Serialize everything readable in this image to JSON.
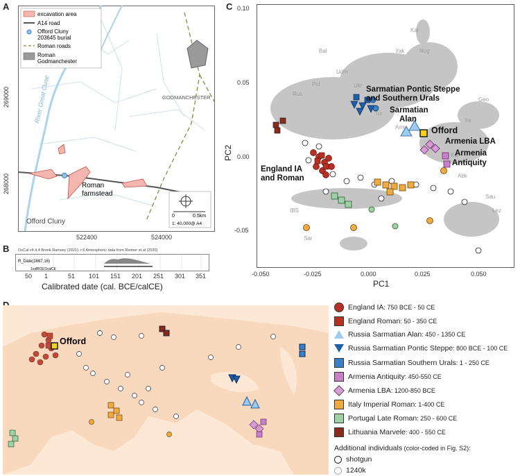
{
  "panel_a": {
    "label": "A",
    "legend": {
      "excavation": "excavation area",
      "road": "A14 road",
      "burial_line1": "Offord Cluny",
      "burial_line2": "203645 burial",
      "roman_roads": "Roman roads",
      "godman_line1": "Roman",
      "godman_line2": "Godmanchester"
    },
    "river": "River Great Ouse",
    "town": "GODMANCHESTER",
    "farmstead_line1": "Roman",
    "farmstead_line2": "farmstead",
    "village": "Offord Cluny",
    "y_ticks": [
      "269000",
      "268000"
    ],
    "x_ticks": [
      "522400",
      "524000"
    ],
    "scale_zero": "0",
    "scale_end": "0.5km",
    "scale_note": "1: 40,000@ A4",
    "colors": {
      "excavation": "#f4b6ae",
      "burial": "#8fc4e8",
      "roman_road": "#8a8a3a",
      "godmanchester": "#9a9a9a"
    }
  },
  "panel_b": {
    "label": "B",
    "header": "OxCal v4.4.4 Bronk Ramsey (2021); r:5 Atmospheric data from Reimer et al (2020)",
    "row_label": "R_Date(1667,16)",
    "unit_note": "1calBCE/1calCE",
    "ticks": [
      "50",
      "1",
      "51",
      "101",
      "151",
      "201",
      "251",
      "301",
      "351"
    ],
    "xlabel": "Calibrated date (cal. BCE/calCE)"
  },
  "panel_c": {
    "label": "C",
    "xlabel": "PC1",
    "ylabel": "PC2",
    "x_ticks": [
      "-0.050",
      "-0.025",
      "0.000",
      "0.025",
      "0.050"
    ],
    "y_ticks": [
      "0.10",
      "0.05",
      "0.00",
      "-0.05"
    ],
    "annotations": {
      "sarm_ps_1": "Sarmatian Pontic Steppe",
      "sarm_ps_2": "and Southern Urals",
      "sarm_alan_1": "Sarmatian",
      "sarm_alan_2": "Alan",
      "offord": "Offord",
      "armenia_lba": "Armenia LBA",
      "armenia_ant_1": "Armenia",
      "armenia_ant_2": "Antiquity",
      "england_1": "England IA",
      "england_2": "and Roman"
    },
    "background_tags": [
      "Kal",
      "Nog",
      "Udm",
      "Rus",
      "Tur",
      "Arm",
      "Sar",
      "IBS",
      "Bal",
      "Sau",
      "Yak",
      "Ira",
      "Kur",
      "Geo",
      "Ukr",
      "Pol",
      "Abk",
      "Lez"
    ]
  },
  "panel_d": {
    "label": "D",
    "offord": "Offord",
    "legend": [
      {
        "name": "England IA",
        "dates": ": 750 BCE - 50 CE",
        "shape": "circle",
        "color": "#b83024"
      },
      {
        "name": "England Roman",
        "dates": ": 50 - 350 CE",
        "shape": "square",
        "color": "#b83024"
      },
      {
        "name": "Russia Sarmatian Alan",
        "dates": ": 450 - 1350 CE",
        "shape": "triangle-up",
        "color": "#9ccbed"
      },
      {
        "name": "Russia Sarmatian Pontic Steppe",
        "dates": ": 800 BCE - 100 CE",
        "shape": "triangle-down",
        "color": "#1f5ea8"
      },
      {
        "name": "Russia Sarmatian Southern Urals",
        "dates": ": 1 - 250 CE",
        "shape": "square",
        "color": "#3b7fc4"
      },
      {
        "name": "Armenia Antiquity",
        "dates": ": 450-550 CE",
        "shape": "square",
        "color": "#c781c6"
      },
      {
        "name": "Armenia LBA",
        "dates": ": 1200-850 BCE",
        "shape": "diamond",
        "color": "#d79bd6"
      },
      {
        "name": "Italy Imperial Roman",
        "dates": ": 1-400 CE",
        "shape": "square",
        "color": "#f0ab40"
      },
      {
        "name": "Portugal Late Roman",
        "dates": ": 250 - 600 CE",
        "shape": "square",
        "color": "#9fd1a6"
      },
      {
        "name": "Lithuania Marvele",
        "dates": ": 400 - 550 CE",
        "shape": "square",
        "color": "#8a2a1c"
      }
    ],
    "additional_title": "Additional individuals",
    "additional_note": " (color-coded in Fig. S2):",
    "shotgun": "shotgun",
    "capture": "1240k"
  }
}
